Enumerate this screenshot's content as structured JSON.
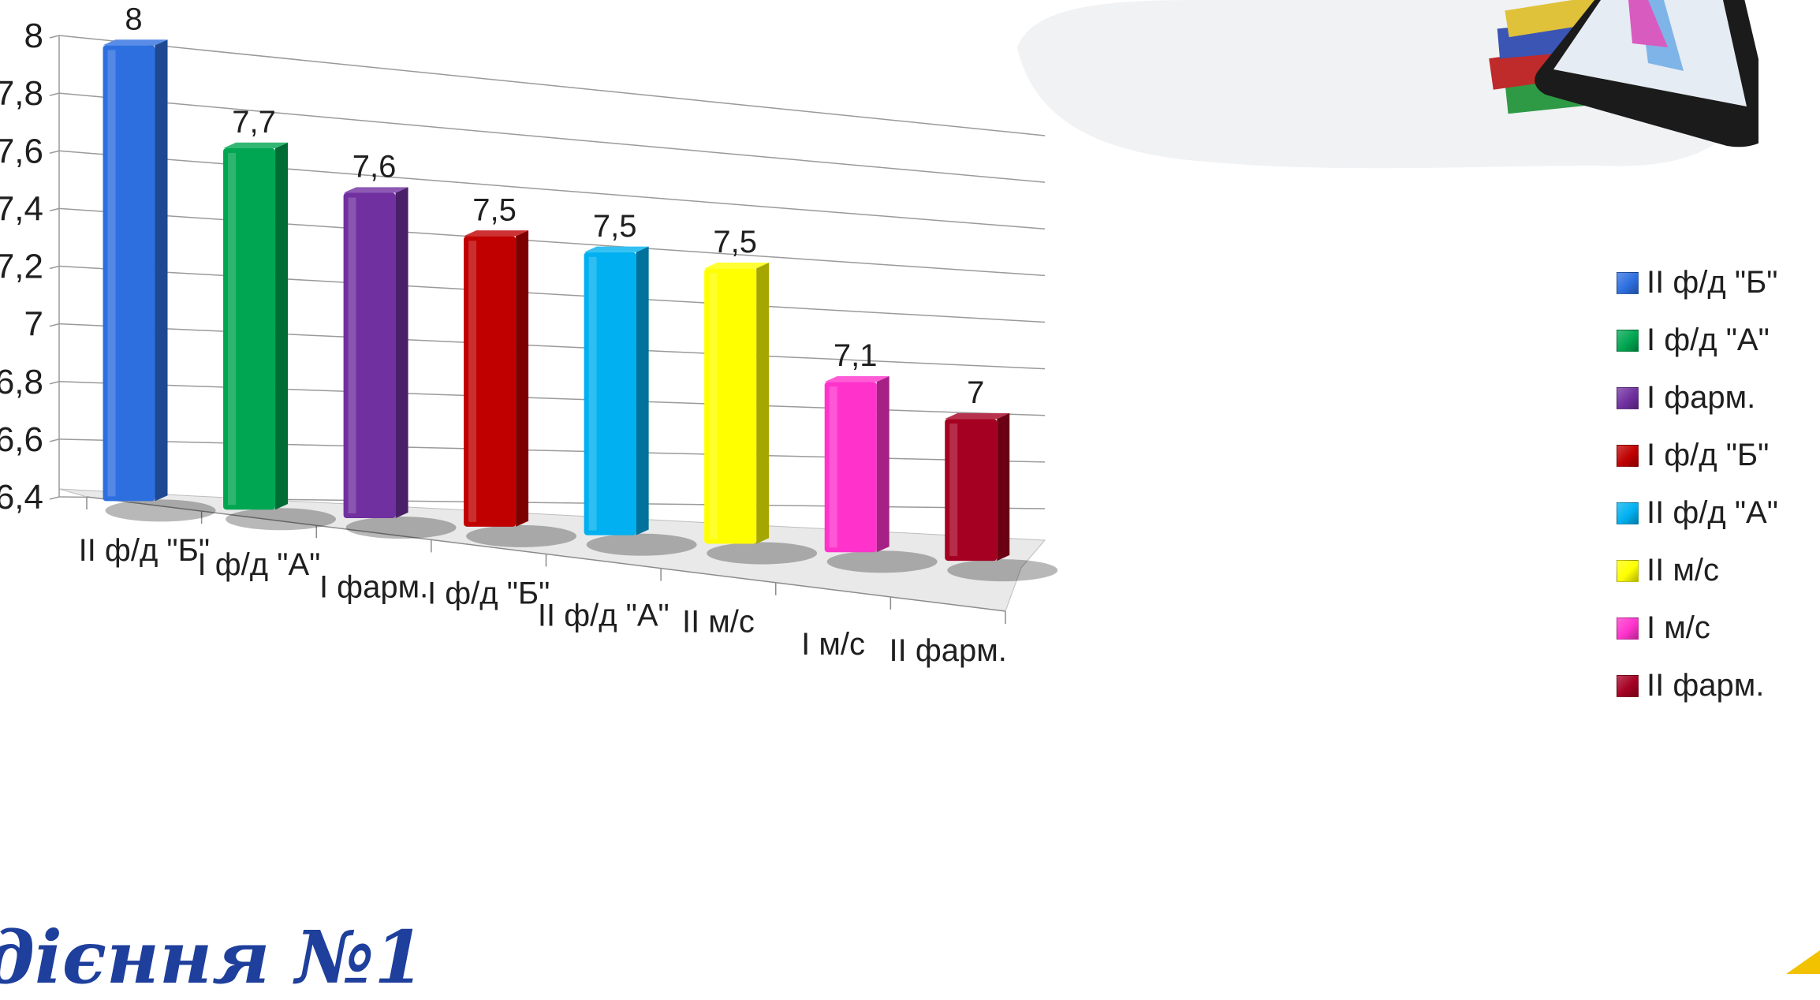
{
  "chart_data": {
    "type": "bar",
    "title": "",
    "xlabel": "",
    "ylabel": "",
    "ylim": [
      6.4,
      8
    ],
    "yticks": [
      "8",
      "7,8",
      "7,6",
      "7,4",
      "7,2",
      "7",
      "6,8",
      "6,6",
      "6,4"
    ],
    "ytick_values": [
      8,
      7.8,
      7.6,
      7.4,
      7.2,
      7.0,
      6.8,
      6.6,
      6.4
    ],
    "categories": [
      "II ф/д \"Б\"",
      "I ф/д \"А\"",
      "I фарм.",
      "I ф/д \"Б\"",
      "II ф/д \"А\"",
      "II м/с",
      "I м/с",
      "II фарм."
    ],
    "values": [
      8.0,
      7.7,
      7.6,
      7.5,
      7.5,
      7.5,
      7.1,
      7.0
    ],
    "data_labels": [
      "8",
      "7,7",
      "7,6",
      "7,5",
      "7,5",
      "7,5",
      "7,1",
      "7"
    ],
    "colors": [
      "#2e6fe0",
      "#00a651",
      "#7030a0",
      "#c00000",
      "#00b0f0",
      "#ffff00",
      "#ff33cc",
      "#a50021"
    ],
    "grid": true,
    "legend_position": "right",
    "legend": [
      "II ф/д \"Б\"",
      "I ф/д \"А\"",
      "I фарм.",
      "I ф/д \"Б\"",
      "II ф/д \"А\"",
      "II м/с",
      "I м/с",
      "II фарм."
    ]
  },
  "footer": {
    "title": "дієння №1"
  }
}
